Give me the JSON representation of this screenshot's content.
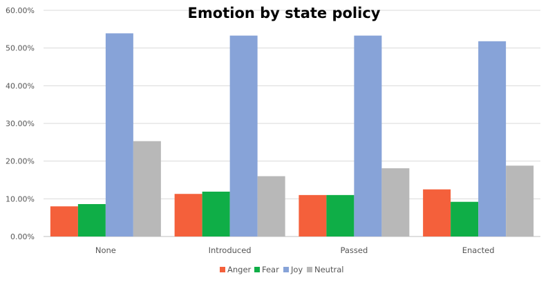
{
  "chart_data": {
    "type": "bar",
    "title": "Emotion by state policy",
    "xlabel": "",
    "ylabel": "",
    "categories": [
      "None",
      "Introduced",
      "Passed",
      "Enacted"
    ],
    "series": [
      {
        "name": "Anger",
        "color": "#f4603b",
        "values": [
          0.08,
          0.113,
          0.11,
          0.125
        ]
      },
      {
        "name": "Fear",
        "color": "#0fae47",
        "values": [
          0.086,
          0.119,
          0.11,
          0.092
        ]
      },
      {
        "name": "Joy",
        "color": "#87a3d8",
        "values": [
          0.539,
          0.533,
          0.533,
          0.518
        ]
      },
      {
        "name": "Neutral",
        "color": "#b8b8b8",
        "values": [
          0.253,
          0.16,
          0.181,
          0.188
        ]
      }
    ],
    "ylim": [
      0,
      0.6
    ],
    "yticks": [
      0,
      0.1,
      0.2,
      0.3,
      0.4,
      0.5,
      0.6
    ],
    "ytick_labels": [
      "0.00%",
      "10.00%",
      "20.00%",
      "30.00%",
      "40.00%",
      "50.00%",
      "60.00%"
    ],
    "grid": true,
    "legend": "bottom"
  }
}
